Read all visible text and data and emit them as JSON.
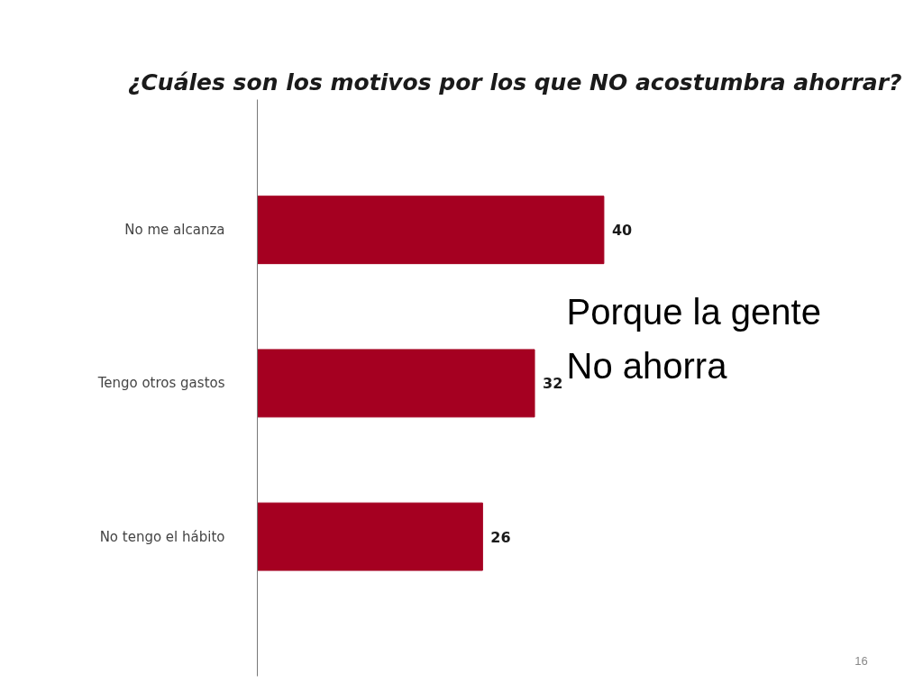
{
  "chart_data": {
    "type": "bar",
    "orientation": "horizontal",
    "title": "¿Cuáles son los motivos por los que NO acostumbra ahorrar?",
    "categories": [
      "No me alcanza",
      "Tengo otros gastos",
      "No tengo el hábito"
    ],
    "values": [
      40,
      32,
      26
    ],
    "color": "#a50021",
    "data_labels": true,
    "annotations": [
      "Porque la gente\nNo ahorra",
      "16"
    ]
  }
}
